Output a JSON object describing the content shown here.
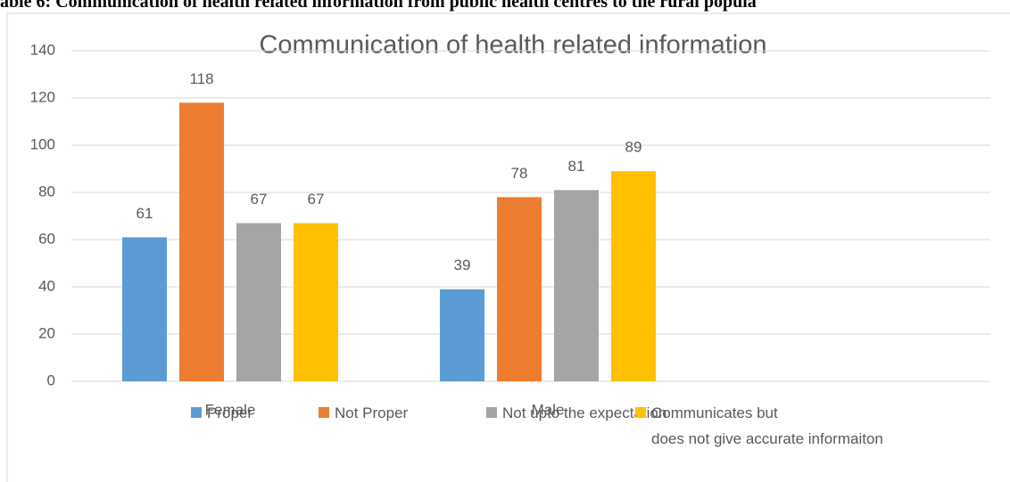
{
  "heading": "able 6: Communication of health related information from public health centres to the rural popula",
  "chart_data": {
    "type": "bar",
    "title": "Communication of health related information",
    "categories": [
      "Female",
      "Male"
    ],
    "series": [
      {
        "name": "Proper",
        "color": "#5b9bd5",
        "values": [
          61,
          39
        ]
      },
      {
        "name": "Not Proper",
        "color": "#ed7d31",
        "values": [
          118,
          78
        ]
      },
      {
        "name": "Not upto the expectation",
        "color": "#a5a5a5",
        "values": [
          67,
          81
        ]
      },
      {
        "name": "Communicates but\ndoes not give accurate informaiton",
        "color": "#ffc000",
        "values": [
          67,
          89
        ]
      }
    ],
    "ylim": [
      0,
      140
    ],
    "yticks": [
      0,
      20,
      40,
      60,
      80,
      100,
      120,
      140
    ],
    "grid": true,
    "legend": "bottom",
    "data_labels": true
  }
}
